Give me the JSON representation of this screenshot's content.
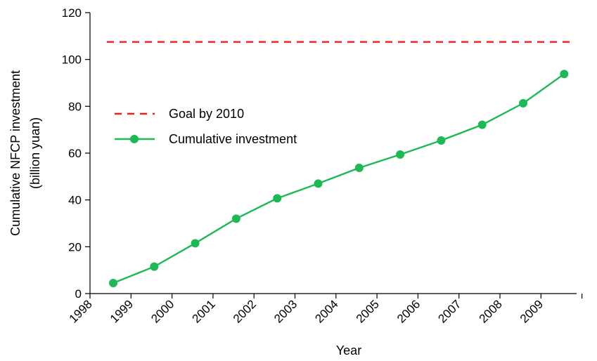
{
  "chart_data": {
    "type": "line",
    "xlabel": "Year",
    "ylabel_line1": "Cumulative NFCP investment",
    "ylabel_line2": "(billion yuan)",
    "ylim": [
      0,
      120
    ],
    "yticks": [
      0,
      20,
      40,
      60,
      80,
      100,
      120
    ],
    "categories": [
      "1998",
      "1999",
      "2000",
      "2001",
      "2002",
      "2003",
      "2004",
      "2005",
      "2006",
      "2007",
      "2008",
      "2009"
    ],
    "series": [
      {
        "name": "Cumulative investment",
        "color": "#1db954",
        "style": "solid-with-markers",
        "values": [
          4.5,
          11.5,
          21.5,
          32,
          40.7,
          47,
          53.7,
          59.4,
          65.4,
          72.1,
          81.3,
          93.8
        ]
      },
      {
        "name": "Goal by 2010",
        "color": "#ff1a1a",
        "style": "dashed",
        "value": 107.5
      }
    ],
    "legend_position": "upper-left",
    "grid": false
  }
}
